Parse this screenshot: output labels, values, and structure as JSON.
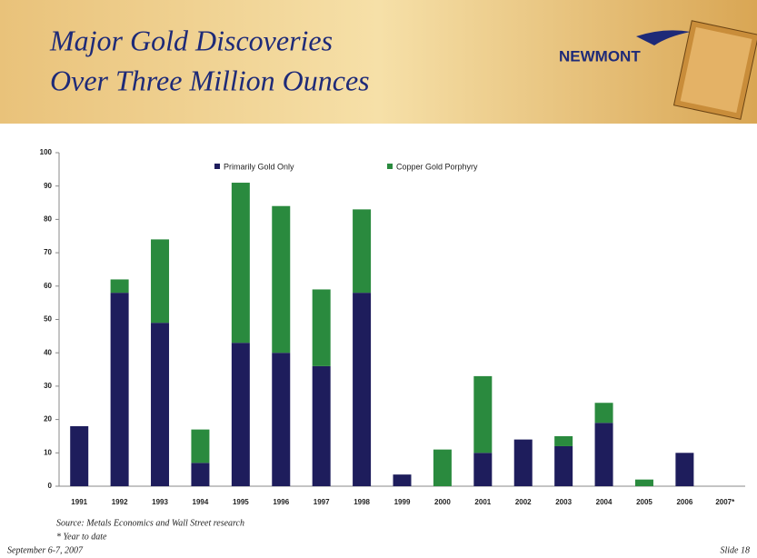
{
  "slide": {
    "title": [
      "Major Gold Discoveries",
      "Over Three Million Ounces"
    ],
    "logo": "NEWMONT",
    "source": "Source: Metals Economics and Wall Street research",
    "footnote": "* Year to date",
    "date": "September 6-7, 2007",
    "number": "Slide 18"
  },
  "chart_data": {
    "type": "stacked_bar",
    "categories": [
      "1991",
      "1992",
      "1993",
      "1994",
      "1995",
      "1996",
      "1997",
      "1998",
      "1999",
      "2000",
      "2001",
      "2002",
      "2003",
      "2004",
      "2005",
      "2006",
      "2007*"
    ],
    "series": [
      {
        "name": "Primarily Gold Only",
        "color": "#1e1d5c",
        "values": [
          18,
          58,
          49,
          7,
          43,
          40,
          36,
          58,
          3.5,
          0,
          10,
          14,
          12,
          19,
          0,
          10,
          0
        ]
      },
      {
        "name": "Copper Gold Porphyry",
        "color": "#2a8a3e",
        "values": [
          0,
          4,
          25,
          10,
          48,
          44,
          23,
          25,
          0,
          11,
          23,
          0,
          3,
          6,
          2,
          0,
          0
        ]
      }
    ],
    "ylim": [
      0,
      100
    ],
    "yticks": [
      0,
      10,
      20,
      30,
      40,
      50,
      60,
      70,
      80,
      90,
      100
    ],
    "grid": false
  }
}
